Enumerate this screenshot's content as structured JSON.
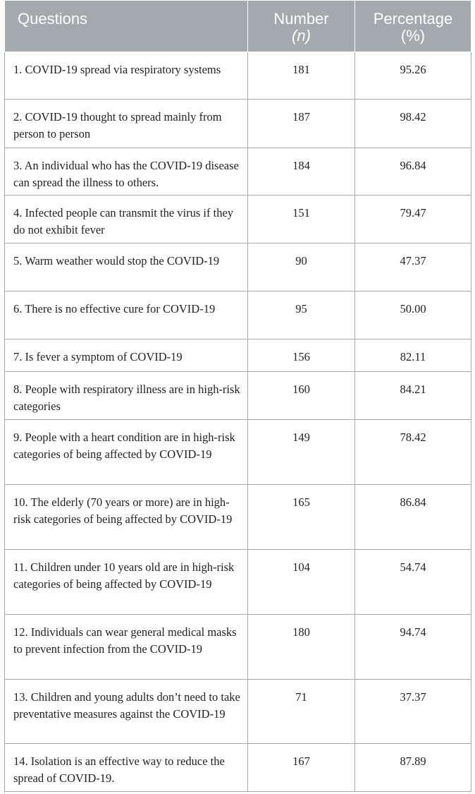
{
  "table": {
    "headers": {
      "questions": "Questions",
      "number_line1": "Number",
      "number_line2": "(n)",
      "percentage_line1": "Percentage",
      "percentage_line2": "(%)"
    },
    "rows": [
      {
        "question": "1. COVID-19 spread via respiratory systems",
        "number": "181",
        "percentage": "95.26"
      },
      {
        "question": "2. COVID-19 thought to spread mainly from person to person",
        "number": "187",
        "percentage": "98.42"
      },
      {
        "question": "3. An individual who has the COVID-19 disease can spread the illness to others.",
        "number": "184",
        "percentage": "96.84"
      },
      {
        "question": "4. Infected people can transmit the virus if they do not exhibit fever",
        "number": "151",
        "percentage": "79.47"
      },
      {
        "question": "5. Warm weather would stop the COVID-19",
        "number": "90",
        "percentage": "47.37"
      },
      {
        "question": "6. There is no effective cure for COVID-19",
        "number": "95",
        "percentage": "50.00"
      },
      {
        "question": "7. Is fever a symptom of COVID-19",
        "number": "156",
        "percentage": "82.11"
      },
      {
        "question": "8. People with respiratory illness are in high-risk categories",
        "number": "160",
        "percentage": "84.21"
      },
      {
        "question": "9. People with a heart condition are in high-risk categories of being affected by COVID-19",
        "number": "149",
        "percentage": "78.42"
      },
      {
        "question": "10. The elderly (70 years or more) are in high-risk categories of being affected by COVID-19",
        "number": "165",
        "percentage": "86.84"
      },
      {
        "question": "11. Children under 10 years old are in high-risk categories of being affected by COVID-19",
        "number": "104",
        "percentage": "54.74"
      },
      {
        "question": "12. Individuals can wear general medical masks to prevent infection from the COVID-19",
        "number": "180",
        "percentage": "94.74"
      },
      {
        "question": "13. Children and young adults don’t need to take preventative measures against the COVID-19",
        "number": "71",
        "percentage": "37.37"
      },
      {
        "question": "14. Isolation is an effective way to reduce the spread of COVID-19.",
        "number": "167",
        "percentage": "87.89"
      }
    ]
  }
}
